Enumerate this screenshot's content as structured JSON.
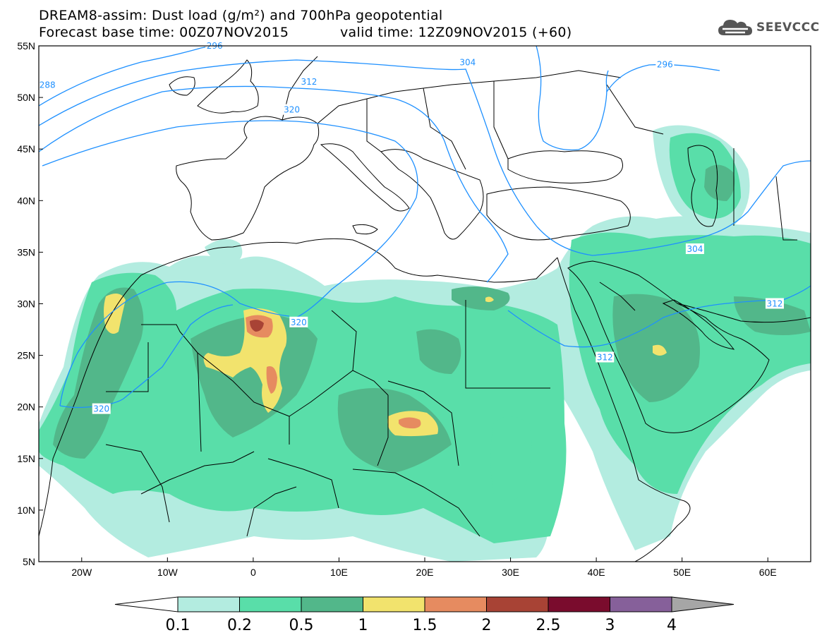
{
  "header": {
    "title_line1": "DREAM8-assim: Dust load (g/m²) and 700hPa geopotential",
    "title_line2_left": "Forecast base time: 00Z07NOV2015",
    "title_line2_right": "valid time: 12Z09NOV2015 (+60)",
    "logo_text": "SEEVCCC",
    "logo_icon": "cloud-icon"
  },
  "map": {
    "lon_range": [
      -25,
      65
    ],
    "lat_range": [
      5,
      55
    ],
    "lon_ticks": [
      {
        "value": -20,
        "label": "20W"
      },
      {
        "value": -10,
        "label": "10W"
      },
      {
        "value": 0,
        "label": "0"
      },
      {
        "value": 10,
        "label": "10E"
      },
      {
        "value": 20,
        "label": "20E"
      },
      {
        "value": 30,
        "label": "30E"
      },
      {
        "value": 40,
        "label": "40E"
      },
      {
        "value": 50,
        "label": "50E"
      },
      {
        "value": 60,
        "label": "60E"
      }
    ],
    "lat_ticks": [
      {
        "value": 55,
        "label": "55N"
      },
      {
        "value": 50,
        "label": "50N"
      },
      {
        "value": 45,
        "label": "45N"
      },
      {
        "value": 40,
        "label": "40N"
      },
      {
        "value": 35,
        "label": "35N"
      },
      {
        "value": 30,
        "label": "30N"
      },
      {
        "value": 25,
        "label": "25N"
      },
      {
        "value": 20,
        "label": "20N"
      },
      {
        "value": 15,
        "label": "15N"
      },
      {
        "value": 10,
        "label": "10N"
      },
      {
        "value": 5,
        "label": "5N"
      }
    ],
    "geopotential_labels": [
      {
        "text": "288",
        "lon": -24,
        "lat": 51.2
      },
      {
        "text": "296",
        "lon": -4.5,
        "lat": 55
      },
      {
        "text": "304",
        "lon": 25,
        "lat": 53.4
      },
      {
        "text": "296",
        "lon": 48,
        "lat": 53.2
      },
      {
        "text": "312",
        "lon": 6.5,
        "lat": 51.5
      },
      {
        "text": "320",
        "lon": 4.5,
        "lat": 48.8
      },
      {
        "text": "320",
        "lon": 5.3,
        "lat": 28.2
      },
      {
        "text": "320",
        "lon": -17.7,
        "lat": 19.8
      },
      {
        "text": "312",
        "lon": 41,
        "lat": 24.8
      },
      {
        "text": "304",
        "lon": 51.5,
        "lat": 35.3
      },
      {
        "text": "312",
        "lon": 60.8,
        "lat": 30
      }
    ]
  },
  "colorbar": {
    "labels": [
      "0.1",
      "0.2",
      "0.5",
      "1",
      "1.5",
      "2",
      "2.5",
      "3",
      "4"
    ],
    "colors": [
      "#ffffff",
      "#b3ece0",
      "#59dea9",
      "#52b78a",
      "#f2e36d",
      "#e68b60",
      "#a84335",
      "#7a0c2d",
      "#86609a",
      "#a6a6a6"
    ]
  },
  "colors": {
    "contour": "#1e90ff",
    "coast": "#000000"
  }
}
